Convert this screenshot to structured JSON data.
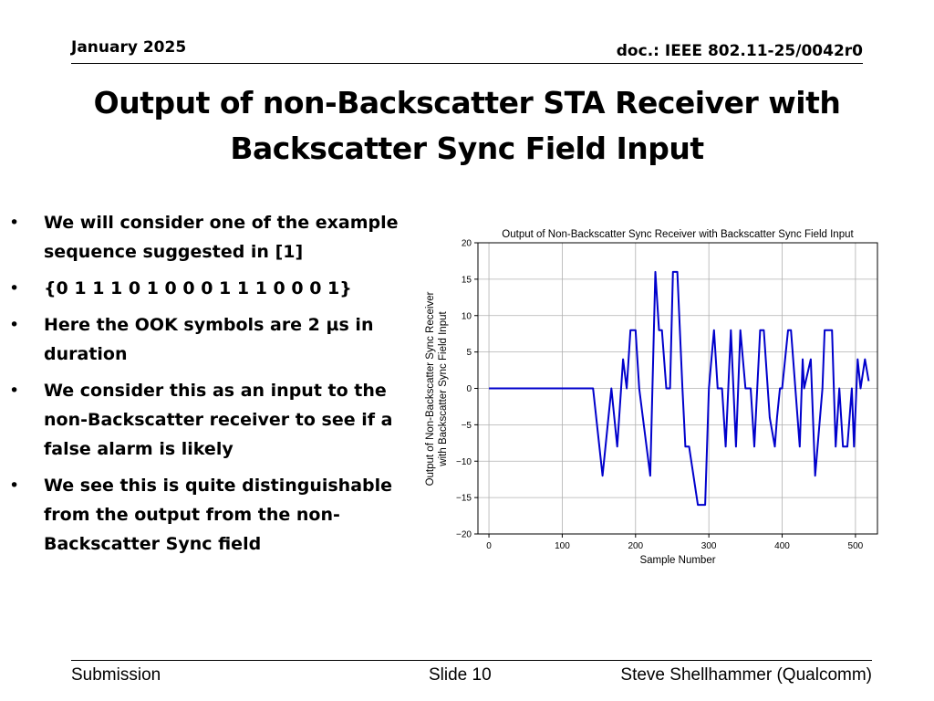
{
  "header": {
    "date": "January 2025",
    "doc": "doc.: IEEE 802.11-25/0042r0"
  },
  "title": {
    "line1": "Output of non-Backscatter STA Receiver with",
    "line2": "Backscatter Sync Field Input"
  },
  "bullets": [
    {
      "text": "We will consider one of the example sequence suggested in [1]"
    },
    {
      "text": "{0 1 1 1 0 1 0 0 0 1 1 1 0 0 0 1}"
    },
    {
      "text": "Here the OOK symbols are 2 µs in duration"
    },
    {
      "text": "We consider this as an input to the non-Backscatter receiver to see if a false alarm is likely"
    },
    {
      "text": "We see this is quite distinguishable from the output from the non-Backscatter Sync field"
    }
  ],
  "bullet_glyph": "•",
  "chart_data": {
    "type": "line",
    "title": "Output of Non-Backscatter Sync Receiver with Backscatter Sync Field Input",
    "xlabel": "Sample Number",
    "ylabel": "Output of Non-Backscatter Sync Receiver\nwith Backscatter Sync Field Input",
    "xlim": [
      -15,
      530
    ],
    "ylim": [
      -20,
      20
    ],
    "xticks": [
      "0",
      "100",
      "200",
      "300",
      "400",
      "500"
    ],
    "yticks": [
      "20",
      "15",
      "10",
      "5",
      "0",
      "−5",
      "−10",
      "−15",
      "−20"
    ],
    "grid": true,
    "line_color": "#0000cc",
    "series": [
      {
        "x": [
          0,
          142,
          155,
          167,
          175,
          183,
          188,
          193,
          200,
          205,
          210,
          220,
          227,
          232,
          236,
          242,
          247,
          251,
          257,
          264,
          268,
          273,
          285,
          295,
          300,
          307,
          312,
          318,
          323,
          330,
          337,
          343,
          350,
          357,
          362,
          370,
          375,
          383,
          390,
          393,
          397,
          400,
          408,
          412,
          418,
          424,
          428,
          430,
          439,
          445,
          455,
          458,
          460,
          468,
          473,
          478,
          483,
          489,
          495,
          498,
          503,
          507,
          513,
          518
        ],
        "y": [
          0,
          0,
          -12,
          0,
          -8,
          4,
          0,
          8,
          8,
          0,
          -4,
          -12,
          16,
          8,
          8,
          0,
          0,
          16,
          16,
          0,
          -8,
          -8,
          -16,
          -16,
          0,
          8,
          0,
          0,
          -8,
          8,
          -8,
          8,
          0,
          0,
          -8,
          8,
          8,
          -4,
          -8,
          -4,
          0,
          0,
          8,
          8,
          0,
          -8,
          4,
          0,
          4,
          -12,
          0,
          8,
          8,
          8,
          -8,
          0,
          -8,
          -8,
          0,
          -8,
          4,
          0,
          4,
          1
        ]
      }
    ]
  },
  "footer": {
    "left": "Submission",
    "center": "Slide 10",
    "right": "Steve Shellhammer (Qualcomm)"
  }
}
